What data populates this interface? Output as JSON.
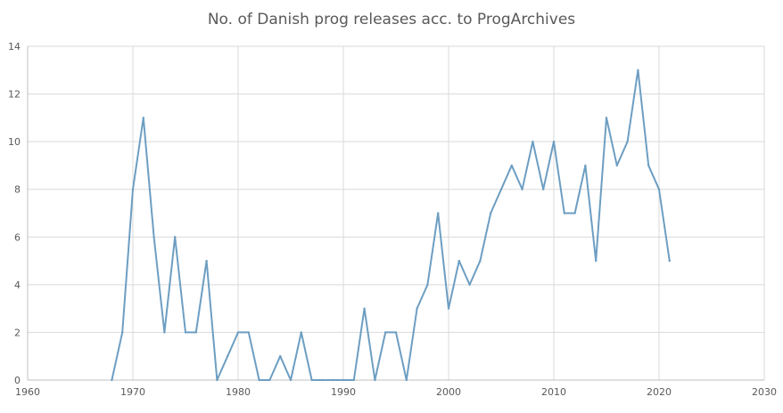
{
  "chart_data": {
    "type": "line",
    "title": "No. of Danish prog releases acc. to ProgArchives",
    "xlabel": "",
    "ylabel": "",
    "xlim": [
      1960,
      2030
    ],
    "ylim": [
      0,
      14
    ],
    "x_ticks": [
      1960,
      1970,
      1980,
      1990,
      2000,
      2010,
      2020,
      2030
    ],
    "y_ticks": [
      0,
      2,
      4,
      6,
      8,
      10,
      12,
      14
    ],
    "grid": true,
    "legend": "none",
    "series": [
      {
        "color": "#6d9ec2",
        "x": [
          1968,
          1969,
          1970,
          1971,
          1972,
          1973,
          1974,
          1975,
          1976,
          1977,
          1978,
          1979,
          1980,
          1981,
          1982,
          1983,
          1984,
          1985,
          1986,
          1987,
          1988,
          1989,
          1990,
          1991,
          1992,
          1993,
          1994,
          1995,
          1996,
          1997,
          1998,
          1999,
          2000,
          2001,
          2002,
          2003,
          2004,
          2005,
          2006,
          2007,
          2008,
          2009,
          2010,
          2011,
          2012,
          2013,
          2014,
          2015,
          2016,
          2017,
          2018,
          2019,
          2020,
          2021
        ],
        "values": [
          0,
          2,
          8,
          11,
          6,
          2,
          6,
          2,
          2,
          5,
          0,
          1,
          2,
          2,
          0,
          0,
          1,
          0,
          2,
          0,
          0,
          0,
          0,
          0,
          3,
          0,
          2,
          2,
          0,
          3,
          4,
          7,
          3,
          5,
          4,
          5,
          7,
          8,
          9,
          8,
          10,
          8,
          10,
          7,
          7,
          9,
          5,
          11,
          9,
          10,
          13,
          9,
          8,
          5
        ]
      }
    ]
  }
}
